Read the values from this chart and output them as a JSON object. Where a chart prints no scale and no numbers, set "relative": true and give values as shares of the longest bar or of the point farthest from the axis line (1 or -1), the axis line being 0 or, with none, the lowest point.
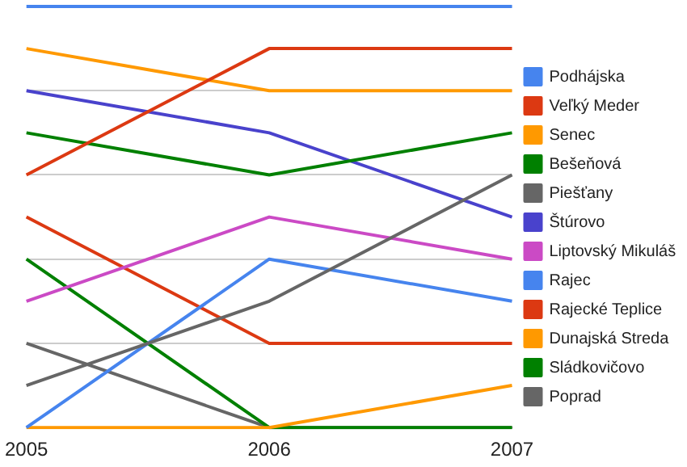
{
  "chart_data": {
    "type": "line",
    "relative": true,
    "categories": [
      "2005",
      "2006",
      "2007"
    ],
    "grid": "y",
    "legend": "right",
    "marker": "none",
    "series": [
      {
        "name": "Podhájska",
        "color": "#4684ee",
        "values": [
          1,
          1,
          1
        ]
      },
      {
        "name": "Veľký Meder",
        "color": "#dc3912",
        "values": [
          0.6,
          0.9,
          0.9
        ]
      },
      {
        "name": "Senec",
        "color": "#ff9900",
        "values": [
          0.9,
          0.8,
          0.8
        ]
      },
      {
        "name": "Bešeňová",
        "color": "#008000",
        "values": [
          0.7,
          0.6,
          0.7
        ]
      },
      {
        "name": "Piešťany",
        "color": "#666666",
        "values": [
          0.1,
          0.3,
          0.6
        ]
      },
      {
        "name": "Štúrovo",
        "color": "#4942cc",
        "values": [
          0.8,
          0.7,
          0.5
        ]
      },
      {
        "name": "Liptovský Mikuláš",
        "color": "#cb4ac5",
        "values": [
          0.3,
          0.5,
          0.4
        ]
      },
      {
        "name": "Rajec",
        "color": "#4684ee",
        "values": [
          0,
          0.4,
          0.3
        ]
      },
      {
        "name": "Rajecké Teplice",
        "color": "#dc3912",
        "values": [
          0.5,
          0.2,
          0.2
        ]
      },
      {
        "name": "Dunajská Streda",
        "color": "#ff9900",
        "values": [
          0,
          0,
          0.1
        ]
      },
      {
        "name": "Sládkovičovo",
        "color": "#008000",
        "values": [
          0.4,
          0,
          0
        ]
      },
      {
        "name": "Poprad",
        "color": "#666666",
        "values": [
          0.2,
          0,
          0
        ]
      }
    ]
  }
}
